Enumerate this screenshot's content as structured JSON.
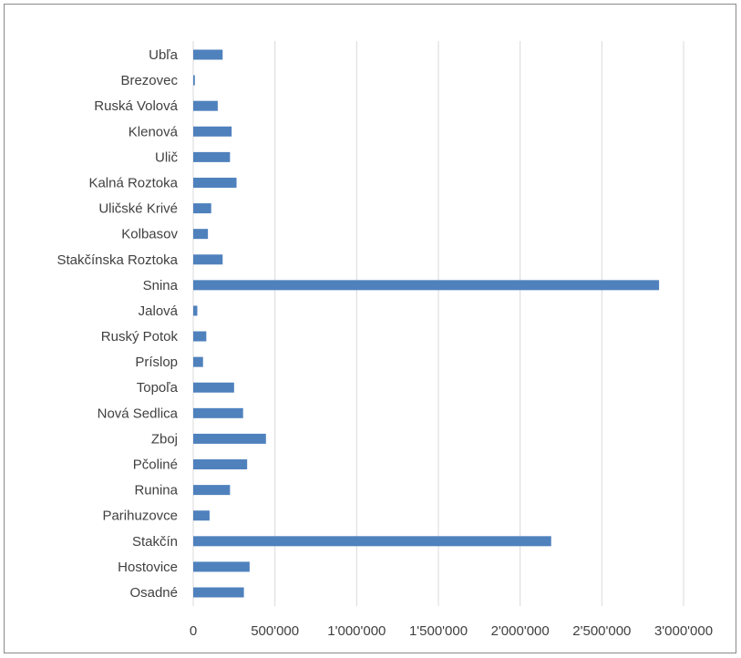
{
  "chart_data": {
    "type": "bar",
    "orientation": "horizontal",
    "title": "",
    "xlabel": "",
    "ylabel": "",
    "categories": [
      "Ubľa",
      "Brezovec",
      "Ruská Volová",
      "Klenová",
      "Ulič",
      "Kalná Roztoka",
      "Uličské Krivé",
      "Kolbasov",
      "Stakčínska Roztoka",
      "Snina",
      "Jalová",
      "Ruský Potok",
      "Príslop",
      "Topoľa",
      "Nová Sedlica",
      "Zboj",
      "Pčoliné",
      "Runina",
      "Parihuzovce",
      "Stakčín",
      "Hostovice",
      "Osadné"
    ],
    "values": [
      180000,
      10000,
      150000,
      235000,
      225000,
      265000,
      110000,
      90000,
      180000,
      2850000,
      25000,
      80000,
      60000,
      250000,
      305000,
      445000,
      330000,
      225000,
      100000,
      2190000,
      345000,
      310000
    ],
    "xlim": [
      0,
      3000000
    ],
    "xticks": [
      0,
      500000,
      1000000,
      1500000,
      2000000,
      2500000,
      3000000
    ],
    "xtick_labels": [
      "0",
      "500'000",
      "1'000'000",
      "1'500'000",
      "2'000'000",
      "2'500'000",
      "3'000'000"
    ],
    "grid": true,
    "legend": "none",
    "bar_color": "#4f81bd"
  }
}
